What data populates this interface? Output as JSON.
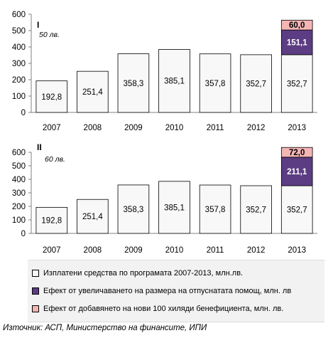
{
  "chart_data": [
    {
      "type": "bar",
      "panel_label": "I",
      "subtitle": "50 лв.",
      "categories": [
        "2007",
        "2008",
        "2009",
        "2010",
        "2011",
        "2012",
        "2013"
      ],
      "series": [
        {
          "name": "Изплатени средства по програмата 2007-2013, млн.лв.",
          "values": [
            192.8,
            251.4,
            358.3,
            385.1,
            357.8,
            352.7,
            352.7
          ],
          "labels": [
            "192,8",
            "251,4",
            "358,3",
            "385,1",
            "357,8",
            "352,7",
            "352,7"
          ]
        },
        {
          "name": "Ефект от увеличаването на размера на отпуснатата помощ, млн. лв",
          "values": [
            0,
            0,
            0,
            0,
            0,
            0,
            151.1
          ],
          "labels": [
            "",
            "",
            "",
            "",
            "",
            "",
            "151,1"
          ]
        },
        {
          "name": "Ефект от добавянето на нови 100 хиляди бенефициента, млн. лв.",
          "values": [
            0,
            0,
            0,
            0,
            0,
            0,
            60.0
          ],
          "labels": [
            "",
            "",
            "",
            "",
            "",
            "",
            "60,0"
          ]
        }
      ],
      "ylim": [
        0,
        600
      ],
      "yticks": [
        0,
        100,
        200,
        300,
        400,
        500,
        600
      ],
      "grid": false
    },
    {
      "type": "bar",
      "panel_label": "II",
      "subtitle": "60 лв.",
      "categories": [
        "2007",
        "2008",
        "2009",
        "2010",
        "2011",
        "2012",
        "2013"
      ],
      "series": [
        {
          "name": "Изплатени средства по програмата 2007-2013, млн.лв.",
          "values": [
            192.8,
            251.4,
            358.3,
            385.1,
            357.8,
            352.7,
            352.7
          ],
          "labels": [
            "192,8",
            "251,4",
            "358,3",
            "385,1",
            "357,8",
            "352,7",
            "352,7"
          ]
        },
        {
          "name": "Ефект от увеличаването на размера на отпуснатата помощ, млн. лв",
          "values": [
            0,
            0,
            0,
            0,
            0,
            0,
            211.1
          ],
          "labels": [
            "",
            "",
            "",
            "",
            "",
            "",
            "211,1"
          ]
        },
        {
          "name": "Ефект от добавянето на нови 100 хиляди бенефициента, млн. лв.",
          "values": [
            0,
            0,
            0,
            0,
            0,
            0,
            72.0
          ],
          "labels": [
            "",
            "",
            "",
            "",
            "",
            "",
            "72,0"
          ]
        }
      ],
      "ylim": [
        0,
        600
      ],
      "yticks": [
        0,
        100,
        200,
        300,
        400,
        500,
        600
      ],
      "grid": false
    }
  ],
  "colors": {
    "base_fill": "#f8f8f8",
    "increase_fill": "#5c3c82",
    "new_beneficiaries_fill": "#f4b5b5",
    "bar_stroke": "#000000",
    "axis": "#808080",
    "legend_bg": "#f2f2f2"
  },
  "legend": {
    "items": [
      {
        "label": "Изплатени средства по програмата 2007-2013, млн.лв.",
        "color": "#f8f8f8"
      },
      {
        "label": "Ефект от увеличаването на размера на отпуснатата помощ, млн. лв",
        "color": "#5c3c82"
      },
      {
        "label": "Ефект от добавянето на нови 100 хиляди бенефициента, млн. лв.",
        "color": "#f4b5b5"
      }
    ]
  },
  "source": "Източник: АСП, Министерство на финансите, ИПИ"
}
